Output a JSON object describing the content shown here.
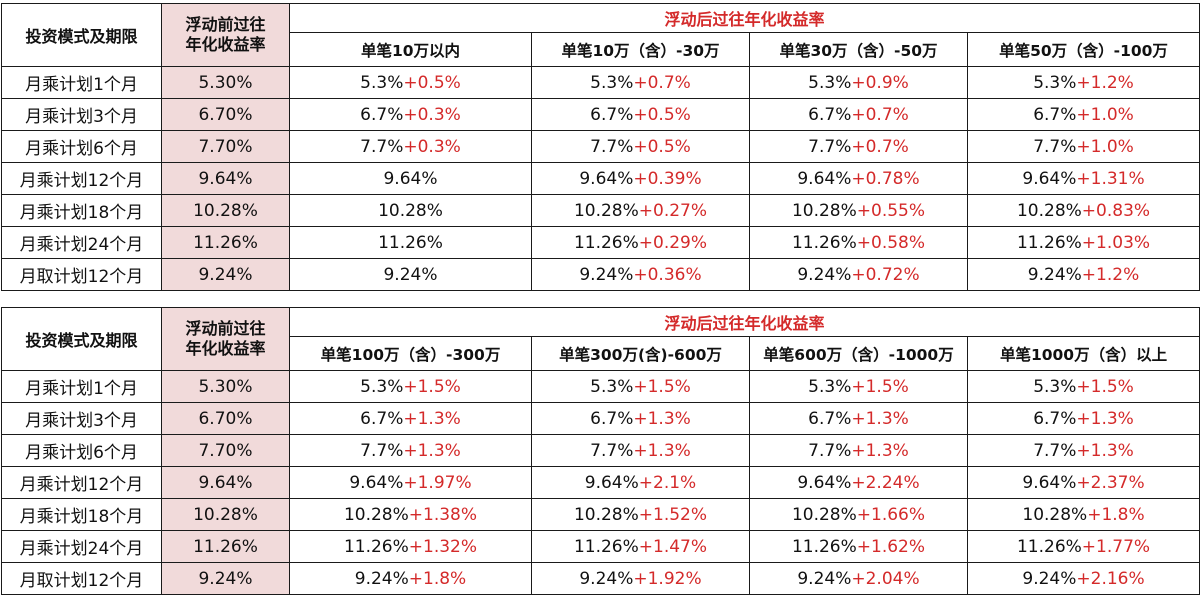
{
  "headers": {
    "mode": "投资模式及期限",
    "prev": "浮动前过往年化收益率",
    "after": "浮动后过往年化收益率"
  },
  "table1": {
    "tiers": [
      "单笔10万以内",
      "单笔10万（含）-30万",
      "单笔30万（含）-50万",
      "单笔50万（含）-100万"
    ],
    "rows": [
      {
        "name": "月乘计划1个月",
        "prev": "5.30%",
        "cells": [
          [
            "5.3%",
            "+0.5%"
          ],
          [
            "5.3%",
            "+0.7%"
          ],
          [
            "5.3%",
            "+0.9%"
          ],
          [
            "5.3%",
            "+1.2%"
          ]
        ]
      },
      {
        "name": "月乘计划3个月",
        "prev": "6.70%",
        "cells": [
          [
            "6.7%",
            "+0.3%"
          ],
          [
            "6.7%",
            "+0.5%"
          ],
          [
            "6.7%",
            "+0.7%"
          ],
          [
            "6.7%",
            "+1.0%"
          ]
        ]
      },
      {
        "name": "月乘计划6个月",
        "prev": "7.70%",
        "cells": [
          [
            "7.7%",
            "+0.3%"
          ],
          [
            "7.7%",
            "+0.5%"
          ],
          [
            "7.7%",
            "+0.7%"
          ],
          [
            "7.7%",
            "+1.0%"
          ]
        ]
      },
      {
        "name": "月乘计划12个月",
        "prev": "9.64%",
        "cells": [
          [
            "9.64%",
            ""
          ],
          [
            "9.64%",
            "+0.39%"
          ],
          [
            "9.64%",
            "+0.78%"
          ],
          [
            "9.64%",
            "+1.31%"
          ]
        ]
      },
      {
        "name": "月乘计划18个月",
        "prev": "10.28%",
        "cells": [
          [
            "10.28%",
            ""
          ],
          [
            "10.28%",
            "+0.27%"
          ],
          [
            "10.28%",
            "+0.55%"
          ],
          [
            "10.28%",
            "+0.83%"
          ]
        ]
      },
      {
        "name": "月乘计划24个月",
        "prev": "11.26%",
        "cells": [
          [
            "11.26%",
            ""
          ],
          [
            "11.26%",
            "+0.29%"
          ],
          [
            "11.26%",
            "+0.58%"
          ],
          [
            "11.26%",
            "+1.03%"
          ]
        ]
      },
      {
        "name": "月取计划12个月",
        "prev": "9.24%",
        "cells": [
          [
            "9.24%",
            ""
          ],
          [
            "9.24%",
            "+0.36%"
          ],
          [
            "9.24%",
            "+0.72%"
          ],
          [
            "9.24%",
            "+1.2%"
          ]
        ]
      }
    ]
  },
  "table2": {
    "tiers": [
      "单笔100万（含）-300万",
      "单笔300万(含)-600万",
      "单笔600万（含）-1000万",
      "单笔1000万（含）以上"
    ],
    "rows": [
      {
        "name": "月乘计划1个月",
        "prev": "5.30%",
        "cells": [
          [
            "5.3%",
            "+1.5%"
          ],
          [
            "5.3%",
            "+1.5%"
          ],
          [
            "5.3%",
            "+1.5%"
          ],
          [
            "5.3%",
            "+1.5%"
          ]
        ]
      },
      {
        "name": "月乘计划3个月",
        "prev": "6.70%",
        "cells": [
          [
            "6.7%",
            "+1.3%"
          ],
          [
            "6.7%",
            "+1.3%"
          ],
          [
            "6.7%",
            "+1.3%"
          ],
          [
            "6.7%",
            "+1.3%"
          ]
        ]
      },
      {
        "name": "月乘计划6个月",
        "prev": "7.70%",
        "cells": [
          [
            "7.7%",
            "+1.3%"
          ],
          [
            "7.7%",
            "+1.3%"
          ],
          [
            "7.7%",
            "+1.3%"
          ],
          [
            "7.7%",
            "+1.3%"
          ]
        ]
      },
      {
        "name": "月乘计划12个月",
        "prev": "9.64%",
        "cells": [
          [
            "9.64%",
            "+1.97%"
          ],
          [
            "9.64%",
            "+2.1%"
          ],
          [
            "9.64%",
            "+2.24%"
          ],
          [
            "9.64%",
            "+2.37%"
          ]
        ]
      },
      {
        "name": "月乘计划18个月",
        "prev": "10.28%",
        "cells": [
          [
            "10.28%",
            "+1.38%"
          ],
          [
            "10.28%",
            "+1.52%"
          ],
          [
            "10.28%",
            "+1.66%"
          ],
          [
            "10.28%",
            "+1.8%"
          ]
        ]
      },
      {
        "name": "月乘计划24个月",
        "prev": "11.26%",
        "cells": [
          [
            "11.26%",
            "+1.32%"
          ],
          [
            "11.26%",
            "+1.47%"
          ],
          [
            "11.26%",
            "+1.62%"
          ],
          [
            "11.26%",
            "+1.77%"
          ]
        ]
      },
      {
        "name": "月取计划12个月",
        "prev": "9.24%",
        "cells": [
          [
            "9.24%",
            "+1.8%"
          ],
          [
            "9.24%",
            "+1.92%"
          ],
          [
            "9.24%",
            "+2.04%"
          ],
          [
            "9.24%",
            "+2.16%"
          ]
        ]
      }
    ]
  },
  "colors": {
    "accent_red": "#d42a2a",
    "prev_col_bg": "#f1dada",
    "border": "#1a1a1a"
  }
}
